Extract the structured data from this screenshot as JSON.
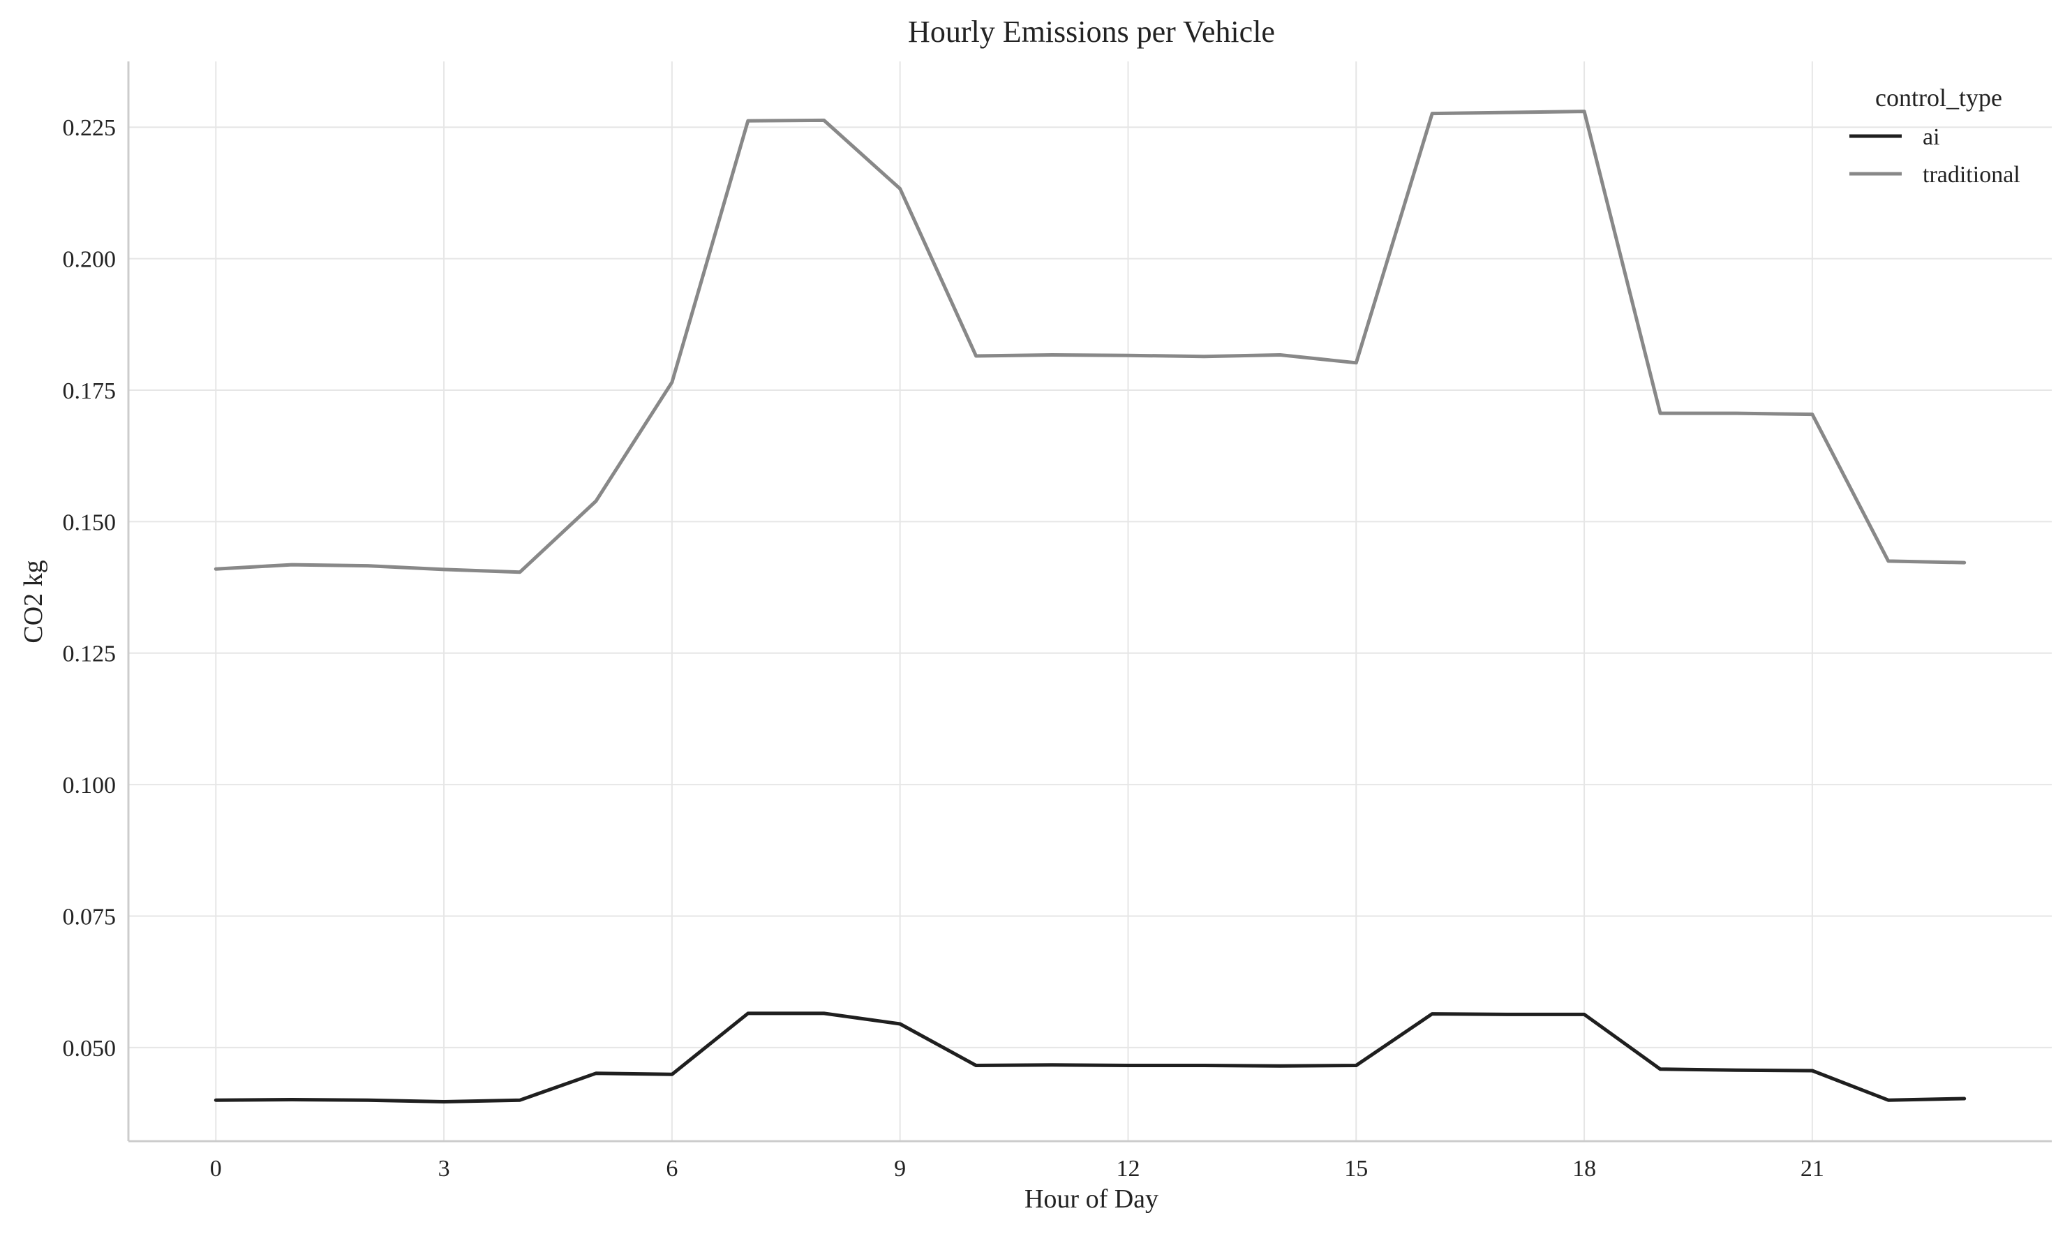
{
  "chart_data": {
    "type": "line",
    "title": "Hourly Emissions per Vehicle",
    "xlabel": "Hour of Day",
    "ylabel": "CO2 kg",
    "xlim": [
      -1.15,
      24.15
    ],
    "ylim": [
      0.0322,
      0.2375
    ],
    "x_ticks": [
      0,
      3,
      6,
      9,
      12,
      15,
      18,
      21
    ],
    "x_tick_labels": [
      "0",
      "3",
      "6",
      "9",
      "12",
      "15",
      "18",
      "21"
    ],
    "y_ticks": [
      0.05,
      0.075,
      0.1,
      0.125,
      0.15,
      0.175,
      0.2,
      0.225
    ],
    "y_tick_labels": [
      "0.050",
      "0.075",
      "0.100",
      "0.125",
      "0.150",
      "0.175",
      "0.200",
      "0.225"
    ],
    "grid": true,
    "legend": {
      "title": "control_type",
      "position": "top-right"
    },
    "x": [
      0,
      1,
      2,
      3,
      4,
      5,
      6,
      7,
      8,
      9,
      10,
      11,
      12,
      13,
      14,
      15,
      16,
      17,
      18,
      19,
      20,
      21,
      22,
      23
    ],
    "series": [
      {
        "name": "ai",
        "color": "#1f1f1f",
        "values": [
          0.04,
          0.0401,
          0.04,
          0.0397,
          0.04,
          0.0451,
          0.0449,
          0.0565,
          0.0565,
          0.0545,
          0.0466,
          0.0467,
          0.0466,
          0.0466,
          0.0465,
          0.0466,
          0.0564,
          0.0563,
          0.0563,
          0.0459,
          0.0457,
          0.0456,
          0.04,
          0.0403
        ]
      },
      {
        "name": "traditional",
        "color": "#888888",
        "values": [
          0.141,
          0.1418,
          0.1416,
          0.1409,
          0.1404,
          0.1539,
          0.1765,
          0.2262,
          0.2263,
          0.2133,
          0.1815,
          0.1817,
          0.1816,
          0.1814,
          0.1817,
          0.1802,
          0.2276,
          0.2278,
          0.228,
          0.1706,
          0.1706,
          0.1704,
          0.1425,
          0.1422
        ]
      }
    ]
  }
}
